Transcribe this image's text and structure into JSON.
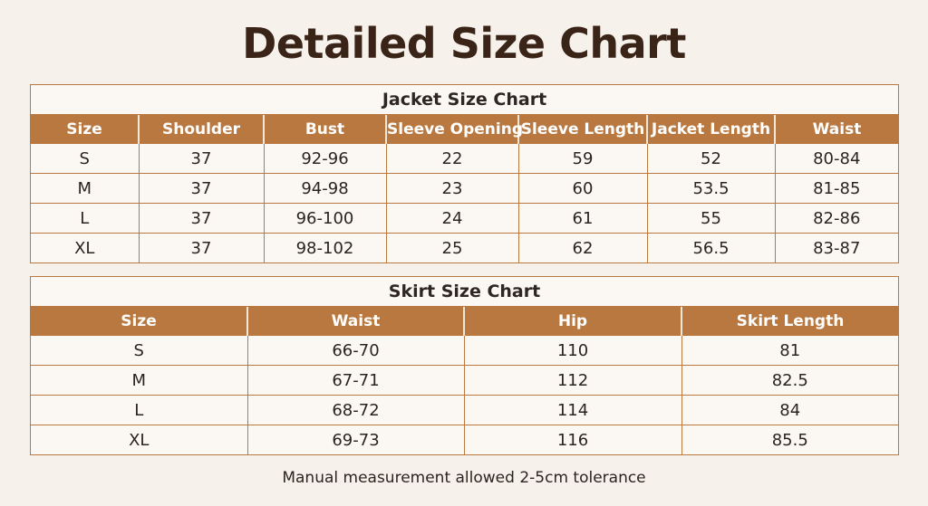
{
  "title": "Detailed Size Chart",
  "jacket": {
    "caption": "Jacket Size Chart",
    "headers": [
      "Size",
      "Shoulder",
      "Bust",
      "Sleeve Opening",
      "Sleeve Length",
      "Jacket Length",
      "Waist"
    ],
    "rows": [
      [
        "S",
        "37",
        "92-96",
        "22",
        "59",
        "52",
        "80-84"
      ],
      [
        "M",
        "37",
        "94-98",
        "23",
        "60",
        "53.5",
        "81-85"
      ],
      [
        "L",
        "37",
        "96-100",
        "24",
        "61",
        "55",
        "82-86"
      ],
      [
        "XL",
        "37",
        "98-102",
        "25",
        "62",
        "56.5",
        "83-87"
      ]
    ]
  },
  "skirt": {
    "caption": "Skirt Size Chart",
    "headers": [
      "Size",
      "Waist",
      "Hip",
      "Skirt Length"
    ],
    "rows": [
      [
        "S",
        "66-70",
        "110",
        "81"
      ],
      [
        "M",
        "67-71",
        "112",
        "82.5"
      ],
      [
        "L",
        "68-72",
        "114",
        "84"
      ],
      [
        "XL",
        "69-73",
        "116",
        "85.5"
      ]
    ]
  },
  "footnote": "Manual measurement allowed 2-5cm tolerance",
  "colors": {
    "accent": "#b9783f",
    "background": "#f6f1ea",
    "title": "#3a2418"
  }
}
